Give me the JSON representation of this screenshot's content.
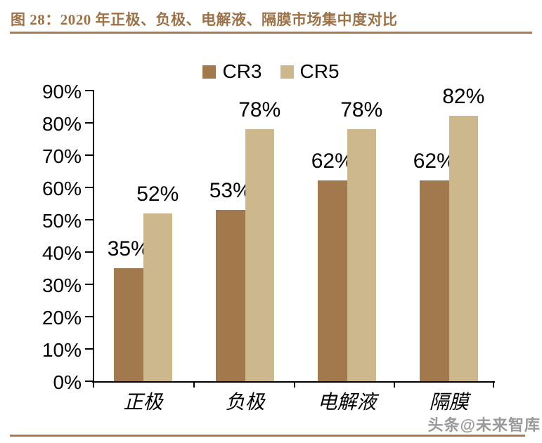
{
  "figure": {
    "title": "图 28：2020 年正极、负极、电解液、隔膜市场集中度对比",
    "watermark": "头条@未来智库"
  },
  "legend": [
    {
      "label": "CR3",
      "color": "#a1794c"
    },
    {
      "label": "CR5",
      "color": "#cdb88e"
    }
  ],
  "chart_data": {
    "type": "bar",
    "title": "2020 年正极、负极、电解液、隔膜市场集中度对比",
    "categories": [
      "正极",
      "负极",
      "电解液",
      "隔膜"
    ],
    "series": [
      {
        "name": "CR3",
        "color": "#a1794c",
        "values": [
          35,
          53,
          62,
          62
        ]
      },
      {
        "name": "CR5",
        "color": "#cdb88e",
        "values": [
          52,
          78,
          78,
          82
        ]
      }
    ],
    "value_labels": [
      [
        "35%",
        "53%",
        "62%",
        "62%"
      ],
      [
        "52%",
        "78%",
        "78%",
        "82%"
      ]
    ],
    "ylim": [
      0,
      90
    ],
    "y_tick_step": 10,
    "y_tick_labels": [
      "0%",
      "10%",
      "20%",
      "30%",
      "40%",
      "50%",
      "60%",
      "70%",
      "80%",
      "90%"
    ],
    "grid": false,
    "legend_position": "top-center",
    "xlabel": "",
    "ylabel": ""
  }
}
